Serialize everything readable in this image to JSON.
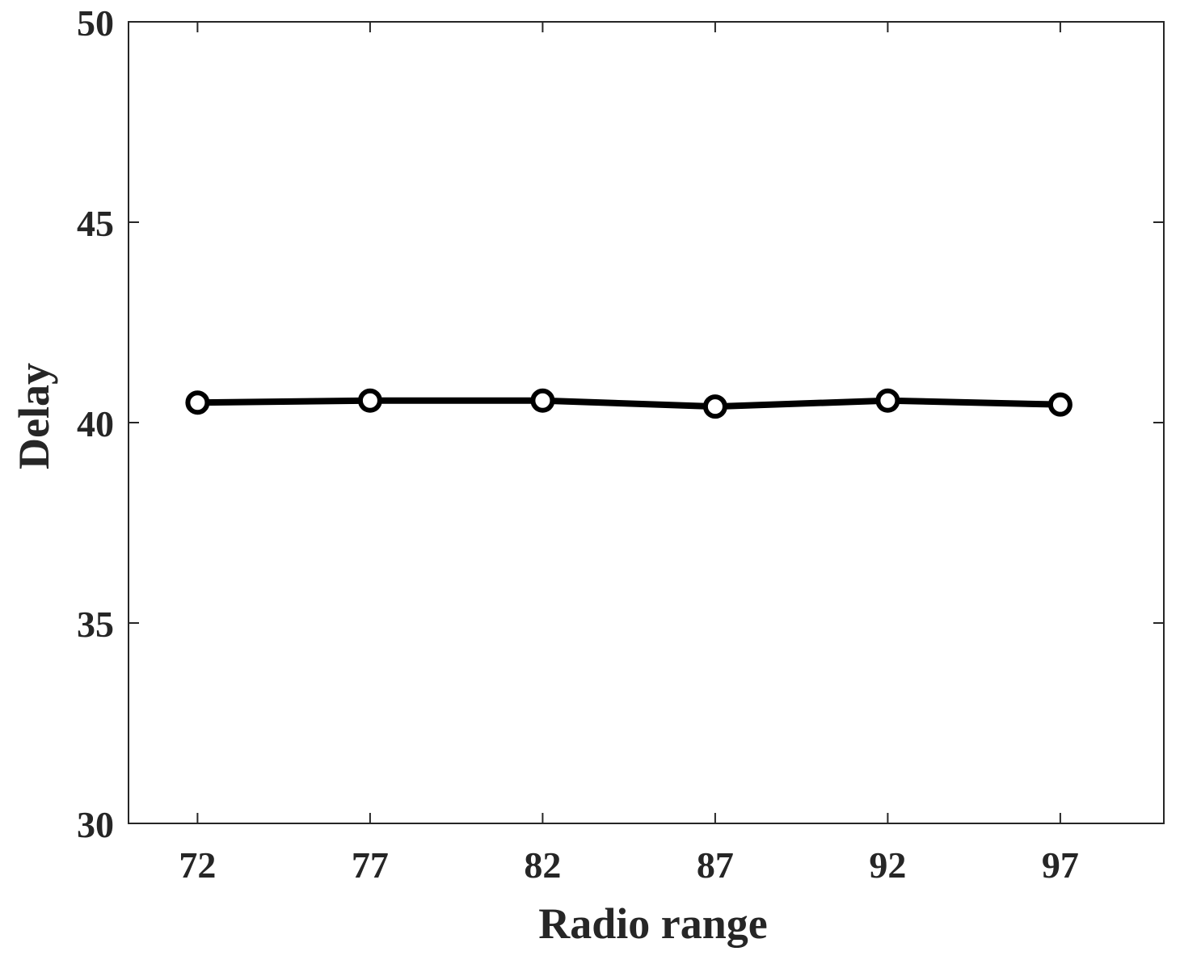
{
  "chart_data": {
    "type": "line",
    "title": "",
    "xlabel": "Radio range",
    "ylabel": "Delay",
    "x": [
      72,
      77,
      82,
      87,
      92,
      97
    ],
    "xticks": [
      "72",
      "77",
      "82",
      "87",
      "92",
      "97"
    ],
    "xlim": [
      70,
      100
    ],
    "yticks": [
      "30",
      "35",
      "40",
      "45",
      "50"
    ],
    "ylim": [
      30,
      50
    ],
    "grid": false,
    "legend": false,
    "series": [
      {
        "values": [
          40.5,
          40.55,
          40.55,
          40.4,
          40.55,
          40.45
        ],
        "color": "#000000",
        "marker": "circle-open"
      }
    ]
  }
}
